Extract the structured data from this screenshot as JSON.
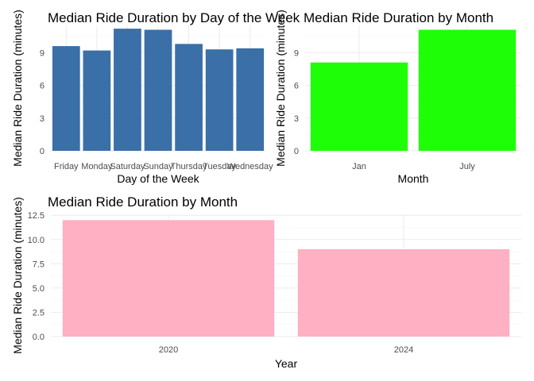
{
  "chart_data": [
    {
      "type": "bar",
      "title": "Median Ride Duration by Day of the Week",
      "xlabel": "Day of the Week",
      "ylabel": "Median Ride Duration (minutes)",
      "categories": [
        "Friday",
        "Monday",
        "Saturday",
        "Sunday",
        "Thursday",
        "Tuesday",
        "Wednesday"
      ],
      "values": [
        9.6,
        9.2,
        11.2,
        11.1,
        9.8,
        9.3,
        9.4
      ],
      "ylim": [
        0,
        11.5
      ],
      "yticks": [
        0,
        3,
        6,
        9
      ],
      "ytick_labels": [
        "0",
        "3",
        "6",
        "9"
      ],
      "bar_color": "#3a6fa8",
      "grid": true
    },
    {
      "type": "bar",
      "title": "Median Ride Duration by Month",
      "xlabel": "Month",
      "ylabel": "Median Ride Duration (minutes)",
      "categories": [
        "Jan",
        "July"
      ],
      "values": [
        8.1,
        11.1
      ],
      "ylim": [
        0,
        11.5
      ],
      "yticks": [
        0,
        3,
        6,
        9
      ],
      "ytick_labels": [
        "0",
        "3",
        "6",
        "9"
      ],
      "bar_color": "#1eff07",
      "grid": true
    },
    {
      "type": "bar",
      "title": "Median Ride Duration by Month",
      "xlabel": "Year",
      "ylabel": "Median Ride Duration (minutes)",
      "categories": [
        "2020",
        "2024"
      ],
      "values": [
        12,
        9
      ],
      "ylim": [
        0,
        12.6
      ],
      "yticks": [
        0,
        2.5,
        5,
        7.5,
        10,
        12.5
      ],
      "ytick_labels": [
        "0.0",
        "2.5",
        "5.0",
        "7.5",
        "10.0",
        "12.5"
      ],
      "bar_color": "#ffb0c2",
      "grid": true
    }
  ]
}
